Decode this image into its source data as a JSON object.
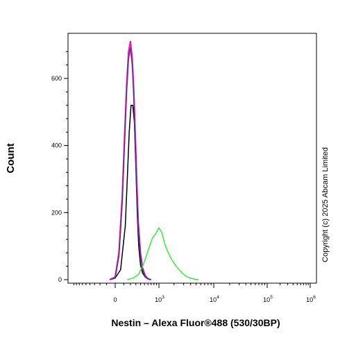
{
  "chart_data": {
    "type": "line",
    "xlabel": "Nestin – Alexa Fluor®488 (530/30BP)",
    "ylabel": "Count",
    "x_scale": "logicle",
    "ylim": [
      0,
      720
    ],
    "y_ticks": [
      {
        "value": 0,
        "label": "0"
      },
      {
        "value": 200,
        "label": "200"
      },
      {
        "value": 400,
        "label": "400"
      },
      {
        "value": 600,
        "label": "600"
      }
    ],
    "x_ticks": [
      {
        "value": 0,
        "base": "0",
        "exp": ""
      },
      {
        "value": 1000,
        "base": "10",
        "exp": "3"
      },
      {
        "value": 10000,
        "base": "10",
        "exp": "4"
      },
      {
        "value": 100000,
        "base": "10",
        "exp": "5"
      },
      {
        "value": 1000000,
        "base": "10",
        "exp": "6"
      }
    ],
    "series": [
      {
        "color": "#000000",
        "x": [
          -60,
          0,
          60,
          120,
          150,
          180,
          210,
          240,
          270,
          300,
          330,
          360,
          400,
          450,
          520,
          600,
          700
        ],
        "y": [
          0,
          5,
          30,
          160,
          300,
          440,
          520,
          520,
          470,
          330,
          190,
          100,
          45,
          20,
          8,
          2,
          0
        ]
      },
      {
        "color": "#e020a0",
        "x": [
          -60,
          0,
          40,
          80,
          110,
          140,
          170,
          200,
          230,
          260,
          290,
          320,
          350,
          400,
          450,
          520,
          600,
          700
        ],
        "y": [
          0,
          8,
          80,
          250,
          420,
          580,
          680,
          710,
          660,
          560,
          420,
          280,
          170,
          80,
          35,
          12,
          3,
          0
        ]
      },
      {
        "color": "#6a2aa0",
        "x": [
          -60,
          0,
          40,
          80,
          110,
          140,
          170,
          200,
          230,
          260,
          290,
          320,
          350,
          400,
          450,
          520,
          600,
          700
        ],
        "y": [
          0,
          6,
          70,
          230,
          400,
          560,
          660,
          690,
          640,
          540,
          400,
          270,
          160,
          75,
          30,
          10,
          2,
          0
        ]
      },
      {
        "color": "#33ee33",
        "x": [
          150,
          250,
          350,
          450,
          550,
          650,
          750,
          850,
          1000,
          1150,
          1300,
          1500,
          1800,
          2200,
          2800,
          3500,
          4500,
          5500
        ],
        "y": [
          0,
          5,
          15,
          40,
          70,
          100,
          125,
          135,
          155,
          140,
          110,
          85,
          60,
          40,
          20,
          8,
          2,
          0
        ]
      }
    ]
  },
  "copyright": "Copyright (c) 2025 Abcam Limited"
}
